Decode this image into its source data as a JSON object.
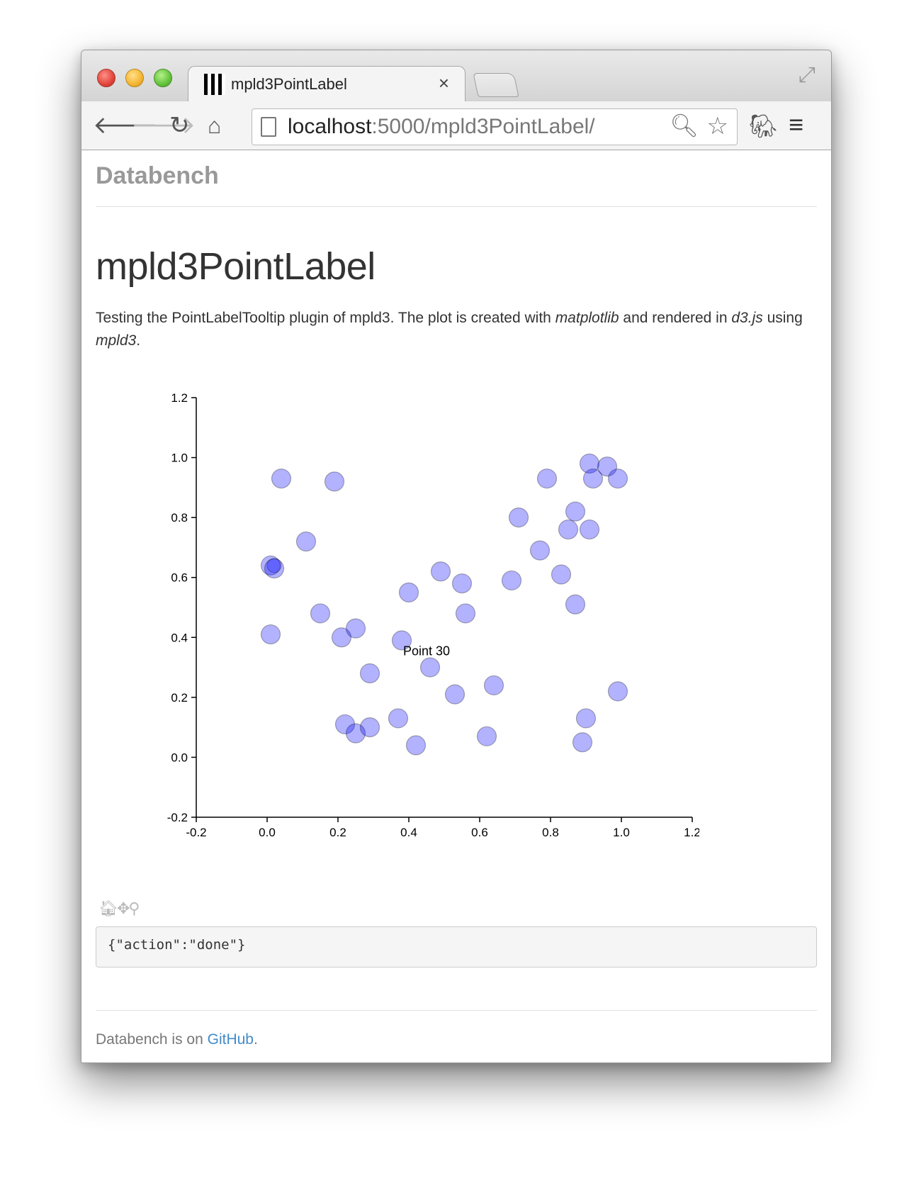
{
  "browser": {
    "tab_title": "mpld3PointLabel",
    "tab_close": "×",
    "url_host": "localhost",
    "url_rest": ":5000/mpld3PointLabel/"
  },
  "page": {
    "brand": "Databench",
    "title": "mpld3PointLabel",
    "lead": {
      "part1": "Testing the PointLabelTooltip plugin of mpld3. The plot is created with ",
      "em1": "matplotlib",
      "part2": " and rendered in ",
      "em2": "d3.js",
      "part3": " using ",
      "em3": "mpld3",
      "part4": "."
    },
    "log_text": "{\"action\":\"done\"}",
    "footer": {
      "prefix": "Databench is on ",
      "link": "GitHub",
      "suffix": "."
    }
  },
  "colors": {
    "point_fill": "#0000ff",
    "point_fill_opacity": 0.3,
    "point_highlight_opacity": 0.6
  },
  "chart_data": {
    "type": "scatter",
    "xlim": [
      -0.2,
      1.2
    ],
    "ylim": [
      -0.2,
      1.2
    ],
    "xticks": [
      -0.2,
      0.0,
      0.2,
      0.4,
      0.6,
      0.8,
      1.0,
      1.2
    ],
    "yticks": [
      -0.2,
      0.0,
      0.2,
      0.4,
      0.6,
      0.8,
      1.0,
      1.2
    ],
    "xtick_labels": [
      "-0.2",
      "0.0",
      "0.2",
      "0.4",
      "0.6",
      "0.8",
      "1.0",
      "1.2"
    ],
    "ytick_labels": [
      "-0.2",
      "0.0",
      "0.2",
      "0.4",
      "0.6",
      "0.8",
      "1.0",
      "1.2"
    ],
    "tooltip": "Point 30",
    "tooltip_anchor": [
      0.45,
      0.34
    ],
    "highlighted_point": [
      0.01,
      0.64
    ],
    "points": [
      [
        0.04,
        0.93
      ],
      [
        0.19,
        0.92
      ],
      [
        0.11,
        0.72
      ],
      [
        0.01,
        0.64
      ],
      [
        0.02,
        0.63
      ],
      [
        0.01,
        0.41
      ],
      [
        0.15,
        0.48
      ],
      [
        0.21,
        0.4
      ],
      [
        0.25,
        0.43
      ],
      [
        0.29,
        0.28
      ],
      [
        0.22,
        0.11
      ],
      [
        0.25,
        0.08
      ],
      [
        0.29,
        0.1
      ],
      [
        0.37,
        0.13
      ],
      [
        0.42,
        0.04
      ],
      [
        0.38,
        0.39
      ],
      [
        0.4,
        0.55
      ],
      [
        0.49,
        0.62
      ],
      [
        0.55,
        0.58
      ],
      [
        0.56,
        0.48
      ],
      [
        0.46,
        0.3
      ],
      [
        0.53,
        0.21
      ],
      [
        0.64,
        0.24
      ],
      [
        0.62,
        0.07
      ],
      [
        0.69,
        0.59
      ],
      [
        0.71,
        0.8
      ],
      [
        0.77,
        0.69
      ],
      [
        0.79,
        0.93
      ],
      [
        0.83,
        0.61
      ],
      [
        0.85,
        0.76
      ],
      [
        0.87,
        0.82
      ],
      [
        0.87,
        0.51
      ],
      [
        0.91,
        0.98
      ],
      [
        0.92,
        0.93
      ],
      [
        0.96,
        0.97
      ],
      [
        0.99,
        0.93
      ],
      [
        0.91,
        0.76
      ],
      [
        0.9,
        0.13
      ],
      [
        0.89,
        0.05
      ],
      [
        0.99,
        0.22
      ]
    ]
  }
}
